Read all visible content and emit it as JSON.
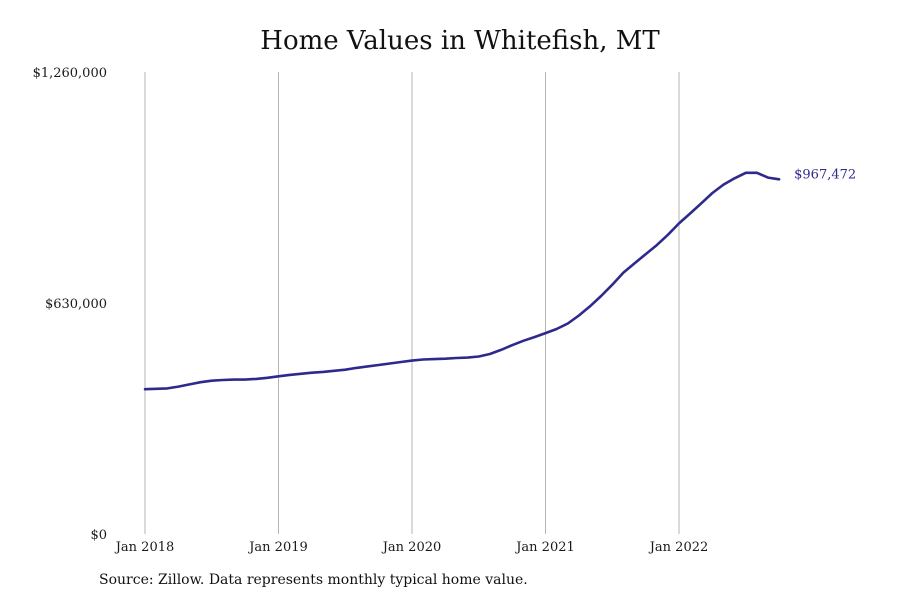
{
  "chart_data": {
    "type": "line",
    "title": "Home Values in Whitefish, MT",
    "xlabel": "",
    "ylabel": "",
    "ylim": [
      0,
      1260000
    ],
    "y_ticks": [
      "$0",
      "$630,000",
      "$1,260,000"
    ],
    "x_ticks": [
      "Jan 2018",
      "Jan 2019",
      "Jan 2020",
      "Jan 2021",
      "Jan 2022"
    ],
    "grid": "vertical",
    "end_label": "$967,472",
    "series": [
      {
        "color": "#2e2a8c",
        "x": [
          "2018-01",
          "2018-02",
          "2018-03",
          "2018-04",
          "2018-05",
          "2018-06",
          "2018-07",
          "2018-08",
          "2018-09",
          "2018-10",
          "2018-11",
          "2018-12",
          "2019-01",
          "2019-02",
          "2019-03",
          "2019-04",
          "2019-05",
          "2019-06",
          "2019-07",
          "2019-08",
          "2019-09",
          "2019-10",
          "2019-11",
          "2019-12",
          "2020-01",
          "2020-02",
          "2020-03",
          "2020-04",
          "2020-05",
          "2020-06",
          "2020-07",
          "2020-08",
          "2020-09",
          "2020-10",
          "2020-11",
          "2020-12",
          "2021-01",
          "2021-02",
          "2021-03",
          "2021-04",
          "2021-05",
          "2021-06",
          "2021-07",
          "2021-08",
          "2021-09",
          "2021-10",
          "2021-11",
          "2021-12",
          "2022-01",
          "2022-02",
          "2022-03",
          "2022-04",
          "2022-05",
          "2022-06",
          "2022-07",
          "2022-08",
          "2022-09",
          "2022-10"
        ],
        "values": [
          395000,
          396000,
          397000,
          402000,
          408000,
          414000,
          418000,
          420000,
          421000,
          421000,
          423000,
          426000,
          430000,
          434000,
          437000,
          440000,
          442000,
          445000,
          448000,
          453000,
          457000,
          461000,
          465000,
          469000,
          473000,
          476000,
          477000,
          478000,
          480000,
          481000,
          484000,
          491000,
          502000,
          515000,
          527000,
          537000,
          548000,
          559000,
          574000,
          596000,
          621000,
          649000,
          680000,
          713000,
          738000,
          763000,
          788000,
          816000,
          847000,
          874000,
          902000,
          930000,
          953000,
          970000,
          985000,
          985000,
          972000,
          967472
        ]
      }
    ]
  },
  "source_note": "Source: Zillow. Data represents monthly typical home value."
}
